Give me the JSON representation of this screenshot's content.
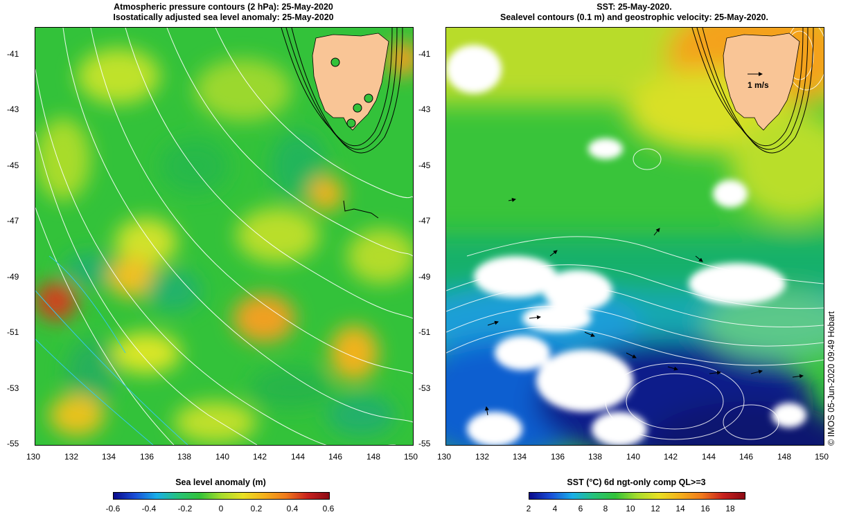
{
  "left_panel": {
    "title_line1": "Atmospheric pressure contours (2 hPa): 25-May-2020",
    "title_line2": "Isostatically adjusted sea level anomaly: 25-May-2020",
    "colorbar_title": "Sea level anomaly (m)",
    "colorbar_ticks": [
      "-0.6",
      "-0.4",
      "-0.2",
      "0",
      "0.2",
      "0.4",
      "0.6"
    ]
  },
  "right_panel": {
    "title_line1": "SST: 25-May-2020.",
    "title_line2": "Sealevel contours (0.1 m) and geostrophic velocity: 25-May-2020.",
    "velocity_scale_label": "1 m/s",
    "colorbar_title": "SST (°C) 6d ngt-only comp QL>=3",
    "colorbar_ticks": [
      "2",
      "4",
      "6",
      "8",
      "10",
      "12",
      "14",
      "16",
      "18"
    ]
  },
  "lat_ticks": [
    "-41",
    "-43",
    "-45",
    "-47",
    "-49",
    "-51",
    "-53",
    "-55"
  ],
  "lon_ticks": [
    "130",
    "132",
    "134",
    "136",
    "138",
    "140",
    "142",
    "144",
    "146",
    "148",
    "150"
  ],
  "credit": "© IMOS 05-Jun-2020 09:49 Hobart",
  "colors": {
    "land": "#f9c596",
    "sla_green": "#33c23a",
    "sla_yellow": "#d9e626",
    "sla_orange": "#f0a020",
    "sla_red": "#d2401f",
    "sst_blue": "#0f3fbf",
    "sst_navy": "#0a1a8a",
    "sst_teal": "#16b0a6",
    "sst_green": "#39c43a",
    "sst_yellow": "#e1e026",
    "sst_orange": "#f4a21b"
  }
}
